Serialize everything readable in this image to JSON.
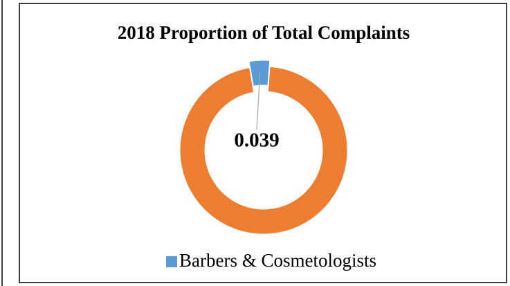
{
  "chart_data": {
    "type": "doughnut",
    "title": "2018 Proportion of Total Complaints",
    "categories": [
      "Barbers & Cosmetologists",
      null
    ],
    "values": [
      0.039,
      0.961
    ],
    "colors": [
      "#5b9bd5",
      "#ed7d31"
    ],
    "exploded": [
      true,
      false
    ],
    "data_labels": [
      true,
      false
    ]
  }
}
